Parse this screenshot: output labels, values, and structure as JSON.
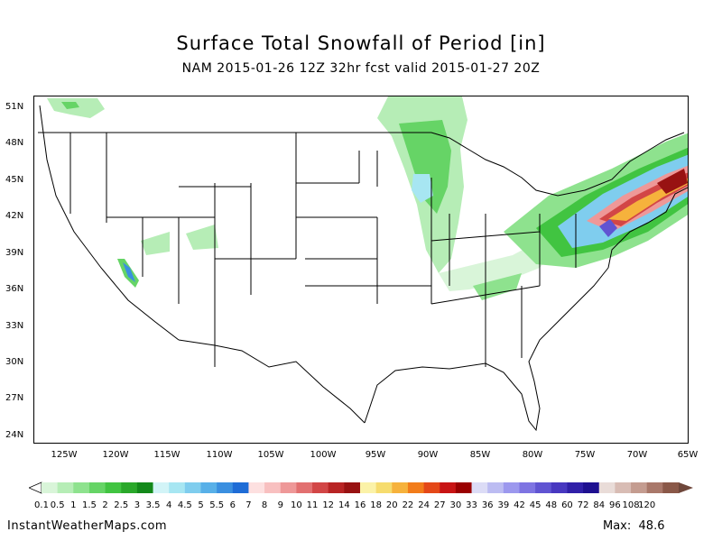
{
  "header": {
    "title": "Surface Total Snowfall of Period [in]",
    "subtitle": "NAM 2015-01-26 12Z 32hr fcst valid 2015-01-27 20Z"
  },
  "map": {
    "lat_labels": [
      "51N",
      "48N",
      "45N",
      "42N",
      "39N",
      "36N",
      "33N",
      "30N",
      "27N",
      "24N"
    ],
    "lon_labels": [
      "125W",
      "120W",
      "115W",
      "110W",
      "105W",
      "100W",
      "95W",
      "90W",
      "85W",
      "80W",
      "75W",
      "70W",
      "65W"
    ]
  },
  "colorbar": {
    "labels": [
      "0.1",
      "0.5",
      "1",
      "1.5",
      "2",
      "2.5",
      "3",
      "3.5",
      "4",
      "4.5",
      "5",
      "5.5",
      "6",
      "7",
      "8",
      "9",
      "10",
      "11",
      "12",
      "14",
      "16",
      "18",
      "20",
      "22",
      "24",
      "27",
      "30",
      "33",
      "36",
      "39",
      "42",
      "45",
      "48",
      "60",
      "72",
      "84",
      "96",
      "108",
      "120"
    ],
    "colors": [
      "#d9f5d9",
      "#b6edb6",
      "#8ee28e",
      "#66d466",
      "#41c441",
      "#2aa82a",
      "#13891a",
      "#d2f4f7",
      "#a7e6f2",
      "#7fcdee",
      "#58b0e8",
      "#3a8fe0",
      "#1e6cd6",
      "#fde0e0",
      "#f8c0c0",
      "#ee9898",
      "#e27070",
      "#d24646",
      "#b82424",
      "#981212",
      "#fbf2a8",
      "#f6dc6e",
      "#f6b23c",
      "#f27c1a",
      "#e44818",
      "#c81414",
      "#9a0000",
      "#dcdcf6",
      "#bcbcf2",
      "#9c98ee",
      "#7e74e2",
      "#6054d2",
      "#4838c0",
      "#3020a8",
      "#1e1090",
      "#e9dcd8",
      "#d8bcb4",
      "#c49c90",
      "#a9786a",
      "#8a5848"
    ]
  },
  "footer": {
    "site": "InstantWeatherMaps.com",
    "max_label": "Max:",
    "max_value": "48.6"
  }
}
